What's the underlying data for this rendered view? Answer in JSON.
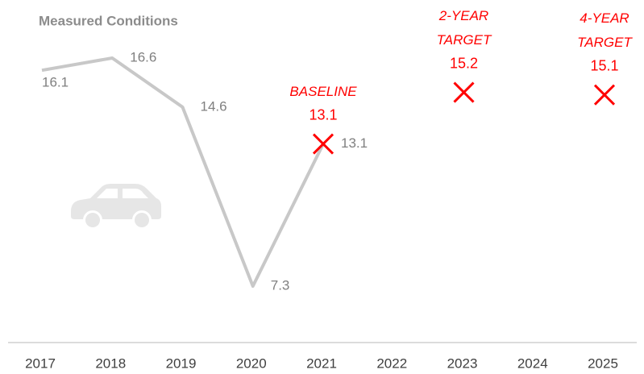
{
  "chart_data": {
    "type": "line",
    "categories": [
      "2017",
      "2018",
      "2019",
      "2020",
      "2021",
      "2022",
      "2023",
      "2024",
      "2025"
    ],
    "series": [
      {
        "name": "Measured Conditions",
        "color": "#c8c8c8",
        "values": [
          16.1,
          16.6,
          14.6,
          7.3,
          13.1,
          null,
          null,
          null,
          null
        ]
      },
      {
        "color": "#ff0000",
        "marker": "x",
        "values": [
          null,
          null,
          null,
          null,
          13.1,
          null,
          15.2,
          null,
          15.1
        ],
        "annotations": [
          null,
          null,
          null,
          null,
          "BASELINE",
          null,
          "2-YEAR TARGET",
          null,
          "4-YEAR TARGET"
        ]
      }
    ]
  }
}
